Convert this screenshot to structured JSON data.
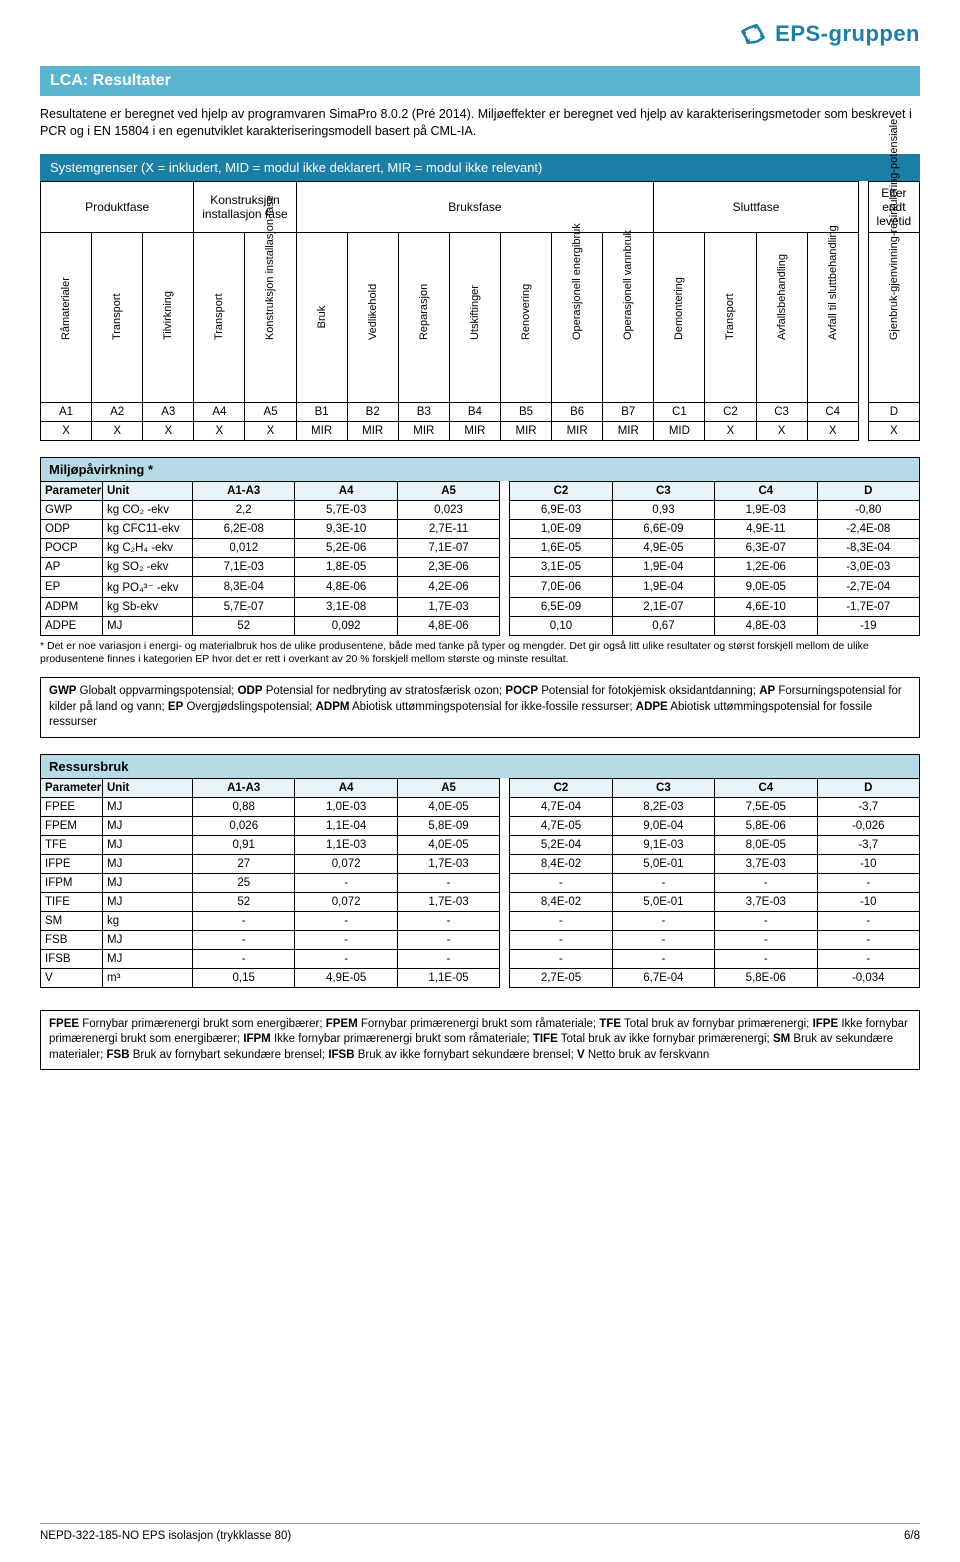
{
  "logo": {
    "text": "EPS-gruppen",
    "brand_color": "#1b7fa6"
  },
  "section_title": "LCA: Resultater",
  "intro": "Resultatene er beregnet ved hjelp av programvaren SimaPro 8.0.2 (Pré 2014). Miljøeffekter er beregnet ved hjelp av karakteriseringsmetoder som beskrevet i PCR og i EN 15804 i en egenutviklet karakteriseringsmodell basert på CML-IA.",
  "sys_bar": "Systemgrenser (X = inkludert, MID = modul ikke deklarert, MIR = modul ikke relevant)",
  "sys_phases": {
    "p1": "Produktfase",
    "p2": "Konstruksjon installasjon fase",
    "p3": "Bruksfase",
    "p4": "Sluttfase",
    "p5": "Etter endt levetid"
  },
  "sys_vert": [
    "Råmaterialer",
    "Transport",
    "Tilvirkning",
    "Transport",
    "Konstruksjon installasjon fase",
    "Bruk",
    "Vedlikehold",
    "Reparasjon",
    "Utskiftinger",
    "Renovering",
    "Operasjonell energibruk",
    "Operasjonell vannbruk",
    "Demontering",
    "Transport",
    "Avfallsbehandling",
    "Avfall til sluttbehandling",
    "Gjenbruk-gjenvinning-resirkulering-potensiale"
  ],
  "sys_codes": [
    "A1",
    "A2",
    "A3",
    "A4",
    "A5",
    "B1",
    "B2",
    "B3",
    "B4",
    "B5",
    "B6",
    "B7",
    "C1",
    "C2",
    "C3",
    "C4",
    "D"
  ],
  "sys_vals": [
    "X",
    "X",
    "X",
    "X",
    "X",
    "MIR",
    "MIR",
    "MIR",
    "MIR",
    "MIR",
    "MIR",
    "MIR",
    "MID",
    "X",
    "X",
    "X",
    "X"
  ],
  "impact": {
    "title": "Miljøpåvirkning *",
    "cols": [
      "Parameter",
      "Unit",
      "A1-A3",
      "A4",
      "A5",
      "C2",
      "C3",
      "C4",
      "D"
    ],
    "rows": [
      [
        "GWP",
        "kg CO₂ -ekv",
        "2,2",
        "5,7E-03",
        "0,023",
        "6,9E-03",
        "0,93",
        "1,9E-03",
        "-0,80"
      ],
      [
        "ODP",
        "kg CFC11-ekv",
        "6,2E-08",
        "9,3E-10",
        "2,7E-11",
        "1,0E-09",
        "6,6E-09",
        "4,9E-11",
        "-2,4E-08"
      ],
      [
        "POCP",
        "kg C₂H₄ -ekv",
        "0,012",
        "5,2E-06",
        "7,1E-07",
        "1,6E-05",
        "4,9E-05",
        "6,3E-07",
        "-8,3E-04"
      ],
      [
        "AP",
        "kg SO₂ -ekv",
        "7,1E-03",
        "1,8E-05",
        "2,3E-06",
        "3,1E-05",
        "1,9E-04",
        "1,2E-06",
        "-3,0E-03"
      ],
      [
        "EP",
        "kg PO₄³⁻ -ekv",
        "8,3E-04",
        "4,8E-06",
        "4,2E-06",
        "7,0E-06",
        "1,9E-04",
        "9,0E-05",
        "-2,7E-04"
      ],
      [
        "ADPM",
        "kg Sb-ekv",
        "5,7E-07",
        "3,1E-08",
        "1,7E-03",
        "6,5E-09",
        "2,1E-07",
        "4,6E-10",
        "-1,7E-07"
      ],
      [
        "ADPE",
        "MJ",
        "52",
        "0,092",
        "4,8E-06",
        "0,10",
        "0,67",
        "4,8E-03",
        "-19"
      ]
    ],
    "note": "* Det er noe variasjon i energi- og materialbruk hos de ulike produsentene, både med tanke på typer og mengder. Det gir også litt ulike resultater og størst forskjell mellom de ulike produsentene finnes i kategorien EP hvor det er rett i overkant av 20 % forskjell mellom største og minste resultat."
  },
  "impact_gloss": "GWP Globalt oppvarmingspotensial; ODP Potensial for nedbryting av stratosfærisk ozon; POCP Potensial for fotokjemisk oksidantdanning; AP Forsurningspotensial for kilder på land og vann; EP Overgjødslingspotensial; ADPM Abiotisk uttømmingspotensial for ikke-fossile ressurser; ADPE Abiotisk uttømmingspotensial for fossile ressurser",
  "resource": {
    "title": "Ressursbruk",
    "cols": [
      "Parameter",
      "Unit",
      "A1-A3",
      "A4",
      "A5",
      "C2",
      "C3",
      "C4",
      "D"
    ],
    "rows": [
      [
        "FPEE",
        "MJ",
        "0,88",
        "1,0E-03",
        "4,0E-05",
        "4,7E-04",
        "8,2E-03",
        "7,5E-05",
        "-3,7"
      ],
      [
        "FPEM",
        "MJ",
        "0,026",
        "1,1E-04",
        "5,8E-09",
        "4,7E-05",
        "9,0E-04",
        "5,8E-06",
        "-0,026"
      ],
      [
        "TFE",
        "MJ",
        "0,91",
        "1,1E-03",
        "4,0E-05",
        "5,2E-04",
        "9,1E-03",
        "8,0E-05",
        "-3,7"
      ],
      [
        "IFPE",
        "MJ",
        "27",
        "0,072",
        "1,7E-03",
        "8,4E-02",
        "5,0E-01",
        "3,7E-03",
        "-10"
      ],
      [
        "IFPM",
        "MJ",
        "25",
        "-",
        "-",
        "-",
        "-",
        "-",
        "-"
      ],
      [
        "TIFE",
        "MJ",
        "52",
        "0,072",
        "1,7E-03",
        "8,4E-02",
        "5,0E-01",
        "3,7E-03",
        "-10"
      ],
      [
        "SM",
        "kg",
        "-",
        "-",
        "-",
        "-",
        "-",
        "-",
        "-"
      ],
      [
        "FSB",
        "MJ",
        "-",
        "-",
        "-",
        "-",
        "-",
        "-",
        "-"
      ],
      [
        "IFSB",
        "MJ",
        "-",
        "-",
        "-",
        "-",
        "-",
        "-",
        "-"
      ],
      [
        "V",
        "m³",
        "0,15",
        "4,9E-05",
        "1,1E-05",
        "2,7E-05",
        "6,7E-04",
        "5,8E-06",
        "-0,034"
      ]
    ]
  },
  "resource_gloss": "FPEE Fornybar primærenergi brukt som energibærer; FPEM Fornybar primærenergi brukt som råmateriale; TFE Total bruk av fornybar primærenergi; IFPE Ikke fornybar primærenergi brukt som energibærer; IFPM Ikke fornybar primærenergi brukt som råmateriale; TIFE Total bruk av ikke fornybar primærenergi; SM Bruk av sekundære materialer; FSB Bruk av fornybart sekundære brensel; IFSB Bruk av ikke fornybart sekundære brensel; V Netto bruk av ferskvann",
  "footer": {
    "left": "NEPD-322-185-NO EPS isolasjon (trykklasse 80)",
    "right": "6/8"
  },
  "colors": {
    "brand": "#1b7fa6",
    "bar_light": "#5bb5d1",
    "row_bg": "#b7dbe6"
  }
}
